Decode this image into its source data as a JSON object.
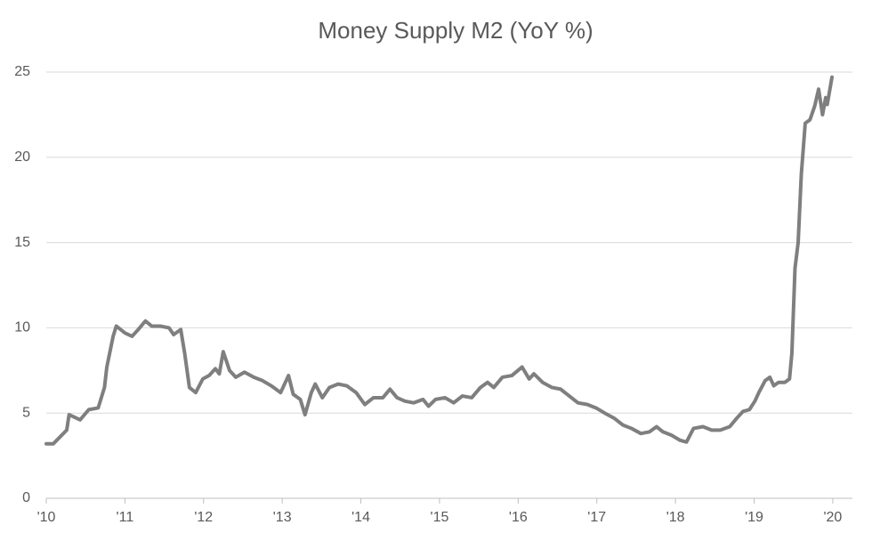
{
  "chart_data": {
    "type": "line",
    "title": "Money Supply M2 (YoY %)",
    "xlim": [
      2010,
      2020.25
    ],
    "ylim": [
      0,
      25
    ],
    "yticks": [
      0,
      5,
      10,
      15,
      20,
      25
    ],
    "xticks": [
      {
        "value": 2010,
        "label": "'10"
      },
      {
        "value": 2011,
        "label": "'11"
      },
      {
        "value": 2012,
        "label": "'12"
      },
      {
        "value": 2013,
        "label": "'13"
      },
      {
        "value": 2014,
        "label": "'14"
      },
      {
        "value": 2015,
        "label": "'15"
      },
      {
        "value": 2016,
        "label": "'16"
      },
      {
        "value": 2017,
        "label": "'17"
      },
      {
        "value": 2018,
        "label": "'18"
      },
      {
        "value": 2019,
        "label": "'19"
      },
      {
        "value": 2020,
        "label": "'20"
      }
    ],
    "grid": true,
    "series": [
      {
        "color": "#7f7f7f",
        "x": [
          2010.0,
          2010.09,
          2010.26,
          2010.29,
          2010.43,
          2010.54,
          2010.66,
          2010.74,
          2010.77,
          2010.85,
          2010.89,
          2011.0,
          2011.09,
          2011.17,
          2011.26,
          2011.34,
          2011.45,
          2011.56,
          2011.62,
          2011.71,
          2011.76,
          2011.82,
          2011.9,
          2011.99,
          2012.07,
          2012.15,
          2012.2,
          2012.25,
          2012.33,
          2012.41,
          2012.52,
          2012.64,
          2012.75,
          2012.86,
          2012.98,
          2013.08,
          2013.14,
          2013.23,
          2013.29,
          2013.37,
          2013.42,
          2013.51,
          2013.6,
          2013.71,
          2013.82,
          2013.94,
          2014.05,
          2014.16,
          2014.28,
          2014.37,
          2014.46,
          2014.56,
          2014.67,
          2014.79,
          2014.86,
          2014.95,
          2015.07,
          2015.18,
          2015.29,
          2015.41,
          2015.52,
          2015.61,
          2015.69,
          2015.8,
          2015.92,
          2016.05,
          2016.14,
          2016.2,
          2016.31,
          2016.43,
          2016.54,
          2016.65,
          2016.76,
          2016.88,
          2016.99,
          2017.1,
          2017.22,
          2017.33,
          2017.44,
          2017.56,
          2017.67,
          2017.76,
          2017.84,
          2017.95,
          2018.06,
          2018.14,
          2018.23,
          2018.35,
          2018.46,
          2018.57,
          2018.69,
          2018.78,
          2018.86,
          2018.94,
          2019.01,
          2019.06,
          2019.14,
          2019.2,
          2019.25,
          2019.31,
          2019.39,
          2019.45,
          2019.48,
          2019.52,
          2019.56,
          2019.6,
          2019.65,
          2019.71,
          2019.77,
          2019.82,
          2019.87,
          2019.91,
          2019.93,
          2019.99
        ],
        "values": [
          3.2,
          3.2,
          4.0,
          4.9,
          4.6,
          5.2,
          5.3,
          6.5,
          7.7,
          9.5,
          10.1,
          9.7,
          9.5,
          9.9,
          10.4,
          10.1,
          10.1,
          10.0,
          9.6,
          9.9,
          8.5,
          6.5,
          6.2,
          7.0,
          7.2,
          7.6,
          7.3,
          8.6,
          7.5,
          7.1,
          7.4,
          7.1,
          6.9,
          6.6,
          6.2,
          7.2,
          6.1,
          5.8,
          4.9,
          6.2,
          6.7,
          5.9,
          6.5,
          6.7,
          6.6,
          6.2,
          5.5,
          5.9,
          5.9,
          6.4,
          5.9,
          5.7,
          5.6,
          5.8,
          5.4,
          5.8,
          5.9,
          5.6,
          6.0,
          5.9,
          6.5,
          6.8,
          6.5,
          7.1,
          7.2,
          7.7,
          7.0,
          7.3,
          6.8,
          6.5,
          6.4,
          6.0,
          5.6,
          5.5,
          5.3,
          5.0,
          4.7,
          4.3,
          4.1,
          3.8,
          3.9,
          4.2,
          3.9,
          3.7,
          3.4,
          3.3,
          4.1,
          4.2,
          4.0,
          4.0,
          4.2,
          4.7,
          5.1,
          5.2,
          5.7,
          6.2,
          6.9,
          7.1,
          6.6,
          6.8,
          6.8,
          7.0,
          8.5,
          13.5,
          15.0,
          19.0,
          22.0,
          22.2,
          23.0,
          24.0,
          22.5,
          23.5,
          23.1,
          24.7
        ]
      }
    ]
  }
}
